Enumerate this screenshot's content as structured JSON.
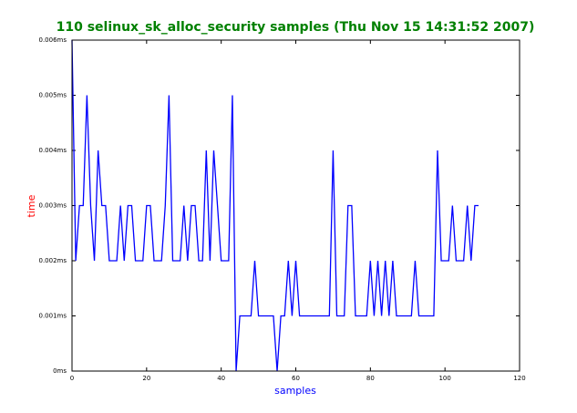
{
  "chart_data": {
    "type": "line",
    "title": "110 selinux_sk_alloc_security samples (Thu Nov 15 14:31:52 2007)",
    "title_color": "#008000",
    "xlabel": "samples",
    "xlabel_color": "#0000ff",
    "ylabel": "time",
    "ylabel_color": "#ff0000",
    "x": [
      0,
      1,
      2,
      3,
      4,
      5,
      6,
      7,
      8,
      9,
      10,
      11,
      12,
      13,
      14,
      15,
      16,
      17,
      18,
      19,
      20,
      21,
      22,
      23,
      24,
      25,
      26,
      27,
      28,
      29,
      30,
      31,
      32,
      33,
      34,
      35,
      36,
      37,
      38,
      39,
      40,
      41,
      42,
      43,
      44,
      45,
      46,
      47,
      48,
      49,
      50,
      51,
      52,
      53,
      54,
      55,
      56,
      57,
      58,
      59,
      60,
      61,
      62,
      63,
      64,
      65,
      66,
      67,
      68,
      69,
      70,
      71,
      72,
      73,
      74,
      75,
      76,
      77,
      78,
      79,
      80,
      81,
      82,
      83,
      84,
      85,
      86,
      87,
      88,
      89,
      90,
      91,
      92,
      93,
      94,
      95,
      96,
      97,
      98,
      99,
      100,
      101,
      102,
      103,
      104,
      105,
      106,
      107,
      108,
      109
    ],
    "series": [
      {
        "color": "#0000ff",
        "values": [
          0.006,
          0.002,
          0.003,
          0.003,
          0.005,
          0.003,
          0.002,
          0.004,
          0.003,
          0.003,
          0.002,
          0.002,
          0.002,
          0.003,
          0.002,
          0.003,
          0.003,
          0.002,
          0.002,
          0.002,
          0.003,
          0.003,
          0.002,
          0.002,
          0.002,
          0.003,
          0.005,
          0.002,
          0.002,
          0.002,
          0.003,
          0.002,
          0.003,
          0.003,
          0.002,
          0.002,
          0.004,
          0.002,
          0.004,
          0.003,
          0.002,
          0.002,
          0.002,
          0.005,
          0,
          0.001,
          0.001,
          0.001,
          0.001,
          0.002,
          0.001,
          0.001,
          0.001,
          0.001,
          0.001,
          0,
          0.001,
          0.001,
          0.002,
          0.001,
          0.002,
          0.001,
          0.001,
          0.001,
          0.001,
          0.001,
          0.001,
          0.001,
          0.001,
          0.001,
          0.004,
          0.001,
          0.001,
          0.001,
          0.003,
          0.003,
          0.001,
          0.001,
          0.001,
          0.001,
          0.002,
          0.001,
          0.002,
          0.001,
          0.002,
          0.001,
          0.002,
          0.001,
          0.001,
          0.001,
          0.001,
          0.001,
          0.002,
          0.001,
          0.001,
          0.001,
          0.001,
          0.001,
          0.004,
          0.002,
          0.002,
          0.002,
          0.003,
          0.002,
          0.002,
          0.002,
          0.003,
          0.002,
          0.003,
          0.003
        ]
      }
    ],
    "xlim": [
      0,
      120
    ],
    "xticks": [
      0,
      20,
      40,
      60,
      80,
      100,
      120
    ],
    "ylim": [
      0,
      0.006
    ],
    "yticks": [
      {
        "value": 0,
        "label": "0ms"
      },
      {
        "value": 0.001,
        "label": "0.001ms"
      },
      {
        "value": 0.002,
        "label": "0.002ms"
      },
      {
        "value": 0.003,
        "label": "0.003ms"
      },
      {
        "value": 0.004,
        "label": "0.004ms"
      },
      {
        "value": 0.005,
        "label": "0.005ms"
      },
      {
        "value": 0.006,
        "label": "0.006ms"
      }
    ]
  }
}
